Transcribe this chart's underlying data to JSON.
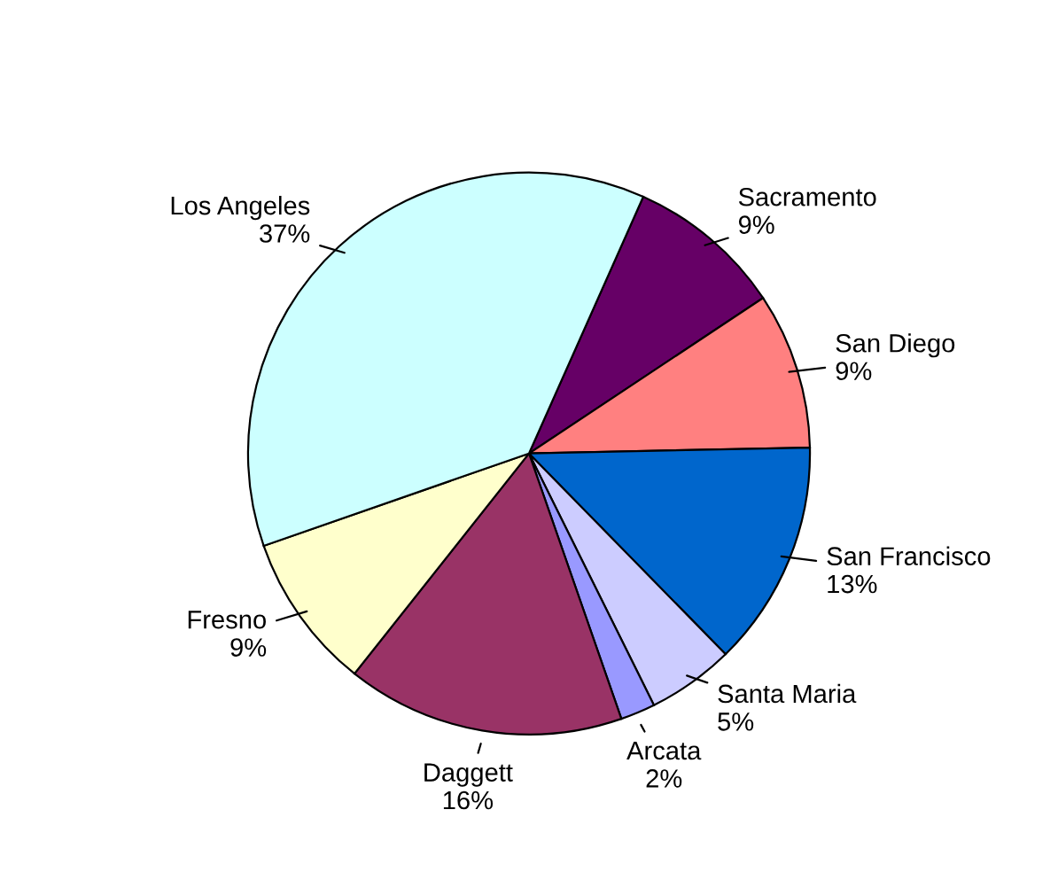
{
  "chart_data": {
    "type": "pie",
    "categories": [
      "Sacramento",
      "San Diego",
      "San Francisco",
      "Santa Maria",
      "Arcata",
      "Daggett",
      "Fresno",
      "Los Angeles"
    ],
    "values": [
      9,
      9,
      13,
      5,
      2,
      16,
      9,
      37
    ],
    "value_labels": [
      "9%",
      "9%",
      "13%",
      "5%",
      "2%",
      "16%",
      "9%",
      "37%"
    ],
    "colors": [
      "#660066",
      "#ff8080",
      "#0066cc",
      "#ccccff",
      "#9999ff",
      "#993366",
      "#ffffcc",
      "#ccffff"
    ],
    "legend": false
  }
}
